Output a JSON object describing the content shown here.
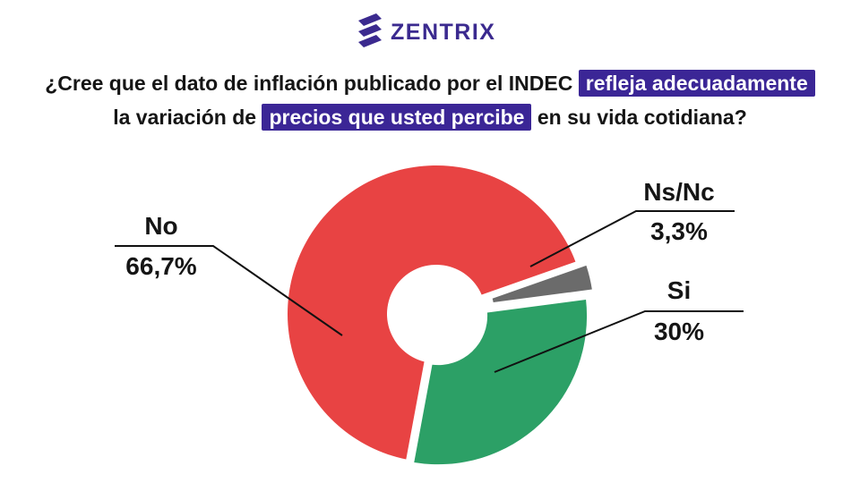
{
  "brand": {
    "name": "ZENTRIX",
    "color": "#3b2a8f"
  },
  "title": {
    "line1_plain": "¿Cree que el dato de inflación publicado por el INDEC ",
    "line1_highlight": "refleja adecuadamente",
    "line2_plain_before": "la variación de ",
    "line2_highlight": "precios que usted percibe",
    "line2_plain_after": " en su vida cotidiana?"
  },
  "chart_data": {
    "type": "pie",
    "style": "donut",
    "slices": [
      {
        "label": "No",
        "value": 66.7,
        "value_label": "66,7%",
        "color": "#e84343"
      },
      {
        "label": "Ns/Nc",
        "value": 3.3,
        "value_label": "3,3%",
        "color": "#6b6b6b"
      },
      {
        "label": "Si",
        "value": 30,
        "value_label": "30%",
        "color": "#2ca066"
      }
    ]
  }
}
